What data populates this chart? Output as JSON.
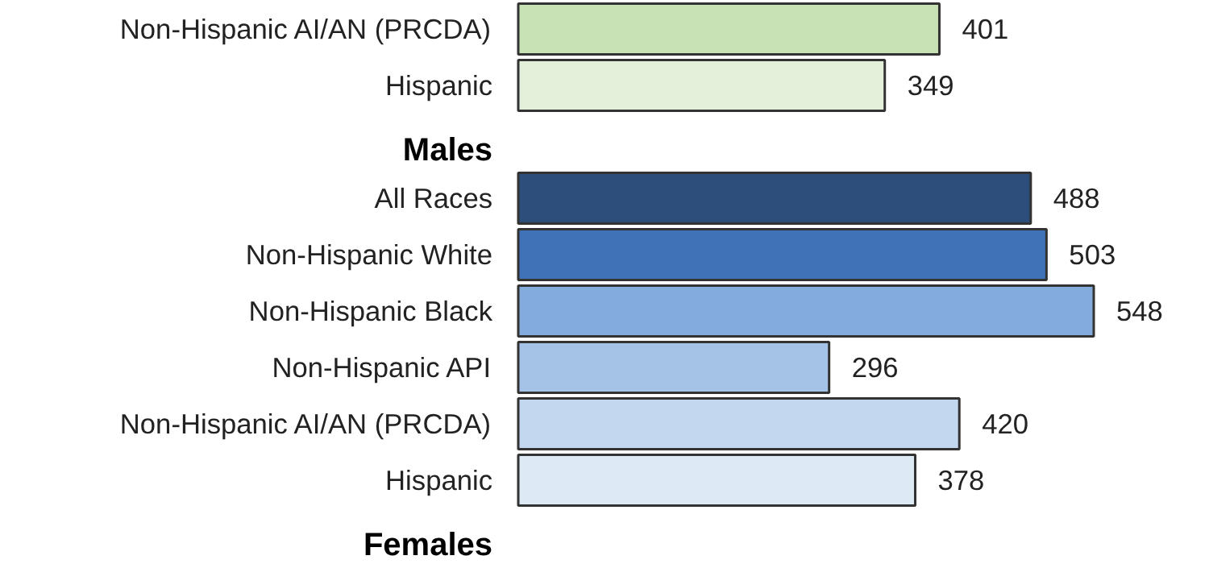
{
  "chart_data": {
    "type": "bar",
    "orientation": "horizontal",
    "data_labels": true,
    "categories": [
      "Non-Hispanic AI/AN (PRCDA)",
      "Hispanic",
      null,
      "All Races",
      "Non-Hispanic White",
      "Non-Hispanic Black",
      "Non-Hispanic API",
      "Non-Hispanic AI/AN (PRCDA)",
      "Hispanic",
      null
    ],
    "values": [
      401,
      349,
      null,
      488,
      503,
      548,
      296,
      420,
      378,
      null
    ],
    "colors": [
      "#c8e2b6",
      "#e4f0da",
      null,
      "#2d4e7b",
      "#3e73b8",
      "#83acdc",
      "#a4c3e6",
      "#c3d7ee",
      "#dde9f5",
      null
    ],
    "annotations": [
      "Males",
      "Females"
    ]
  }
}
